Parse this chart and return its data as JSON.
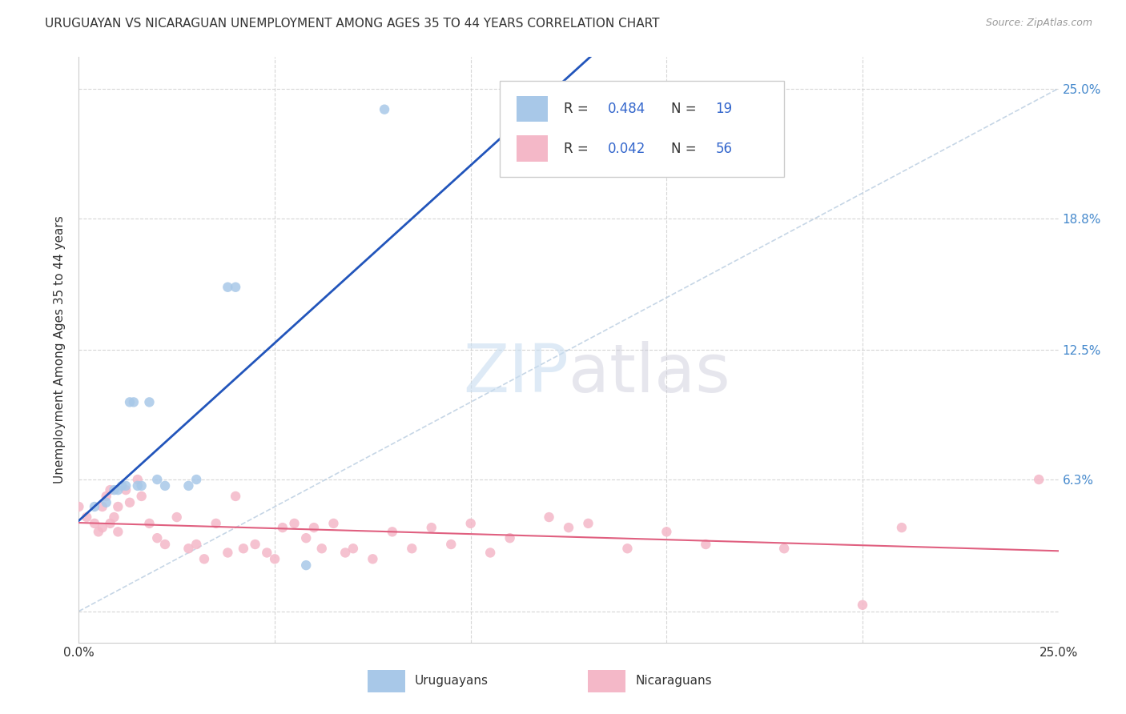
{
  "title": "URUGUAYAN VS NICARAGUAN UNEMPLOYMENT AMONG AGES 35 TO 44 YEARS CORRELATION CHART",
  "source": "Source: ZipAtlas.com",
  "ylabel": "Unemployment Among Ages 35 to 44 years",
  "xlim": [
    0.0,
    0.25
  ],
  "ylim": [
    -0.015,
    0.265
  ],
  "ytick_vals": [
    0.0,
    0.063,
    0.125,
    0.188,
    0.25
  ],
  "right_ytick_labels": [
    "",
    "6.3%",
    "12.5%",
    "18.8%",
    "25.0%"
  ],
  "legend_r_uruguayan": "0.484",
  "legend_n_uruguayan": "19",
  "legend_r_nicaraguan": "0.042",
  "legend_n_nicaraguan": "56",
  "uruguayan_color": "#a8c8e8",
  "nicaraguan_color": "#f4b8c8",
  "uruguayan_line_color": "#2255bb",
  "nicaraguan_line_color": "#e06080",
  "diagonal_line_color": "#b8cce0",
  "uruguayan_x": [
    0.004,
    0.007,
    0.009,
    0.01,
    0.011,
    0.012,
    0.013,
    0.014,
    0.015,
    0.016,
    0.018,
    0.02,
    0.022,
    0.028,
    0.03,
    0.038,
    0.04,
    0.058,
    0.078
  ],
  "uruguayan_y": [
    0.05,
    0.052,
    0.058,
    0.058,
    0.06,
    0.06,
    0.1,
    0.1,
    0.06,
    0.06,
    0.1,
    0.063,
    0.06,
    0.06,
    0.063,
    0.155,
    0.155,
    0.022,
    0.24
  ],
  "nicaraguan_x": [
    0.0,
    0.002,
    0.004,
    0.005,
    0.006,
    0.006,
    0.007,
    0.008,
    0.008,
    0.009,
    0.01,
    0.01,
    0.012,
    0.013,
    0.015,
    0.016,
    0.018,
    0.02,
    0.022,
    0.025,
    0.028,
    0.03,
    0.032,
    0.035,
    0.038,
    0.04,
    0.042,
    0.045,
    0.048,
    0.05,
    0.052,
    0.055,
    0.058,
    0.06,
    0.062,
    0.065,
    0.068,
    0.07,
    0.075,
    0.08,
    0.085,
    0.09,
    0.095,
    0.1,
    0.105,
    0.11,
    0.12,
    0.125,
    0.13,
    0.14,
    0.15,
    0.16,
    0.18,
    0.2,
    0.21,
    0.245
  ],
  "nicaraguan_y": [
    0.05,
    0.045,
    0.042,
    0.038,
    0.05,
    0.04,
    0.055,
    0.058,
    0.042,
    0.045,
    0.05,
    0.038,
    0.058,
    0.052,
    0.063,
    0.055,
    0.042,
    0.035,
    0.032,
    0.045,
    0.03,
    0.032,
    0.025,
    0.042,
    0.028,
    0.055,
    0.03,
    0.032,
    0.028,
    0.025,
    0.04,
    0.042,
    0.035,
    0.04,
    0.03,
    0.042,
    0.028,
    0.03,
    0.025,
    0.038,
    0.03,
    0.04,
    0.032,
    0.042,
    0.028,
    0.035,
    0.045,
    0.04,
    0.042,
    0.03,
    0.038,
    0.032,
    0.03,
    0.003,
    0.04,
    0.063
  ],
  "bg_color": "#ffffff",
  "grid_color": "#cccccc",
  "title_color": "#333333"
}
